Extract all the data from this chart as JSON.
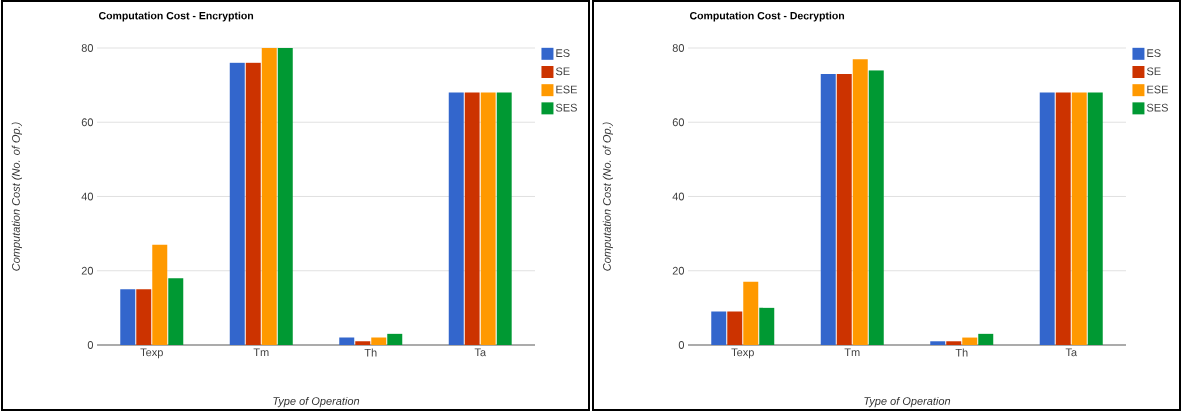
{
  "chart_data": [
    {
      "type": "bar",
      "title": "Computation Cost - Encryption",
      "xlabel": "Type of Operation",
      "ylabel": "Computation Cost (No. of Op.)",
      "categories": [
        "Texp",
        "Tm",
        "Th",
        "Ta"
      ],
      "series": [
        {
          "name": "ES",
          "color": "#3366cc",
          "values": [
            15,
            76,
            2,
            68
          ]
        },
        {
          "name": "SE",
          "color": "#cc3300",
          "values": [
            15,
            76,
            1,
            68
          ]
        },
        {
          "name": "ESE",
          "color": "#ff9900",
          "values": [
            27,
            80,
            2,
            68
          ]
        },
        {
          "name": "SES",
          "color": "#009933",
          "values": [
            18,
            80,
            3,
            68
          ]
        }
      ],
      "ylim": [
        0,
        80
      ],
      "yticks": [
        0,
        20,
        40,
        60,
        80
      ],
      "grid": "y",
      "legend": "right"
    },
    {
      "type": "bar",
      "title": "Computation Cost - Decryption",
      "xlabel": "Type of Operation",
      "ylabel": "Computation Cost (No. of Op.)",
      "categories": [
        "Texp",
        "Tm",
        "Th",
        "Ta"
      ],
      "series": [
        {
          "name": "ES",
          "color": "#3366cc",
          "values": [
            9,
            73,
            1,
            68
          ]
        },
        {
          "name": "SE",
          "color": "#cc3300",
          "values": [
            9,
            73,
            1,
            68
          ]
        },
        {
          "name": "ESE",
          "color": "#ff9900",
          "values": [
            17,
            77,
            2,
            68
          ]
        },
        {
          "name": "SES",
          "color": "#009933",
          "values": [
            10,
            74,
            3,
            68
          ]
        }
      ],
      "ylim": [
        0,
        80
      ],
      "yticks": [
        0,
        20,
        40,
        60,
        80
      ],
      "grid": "y",
      "legend": "right"
    }
  ]
}
